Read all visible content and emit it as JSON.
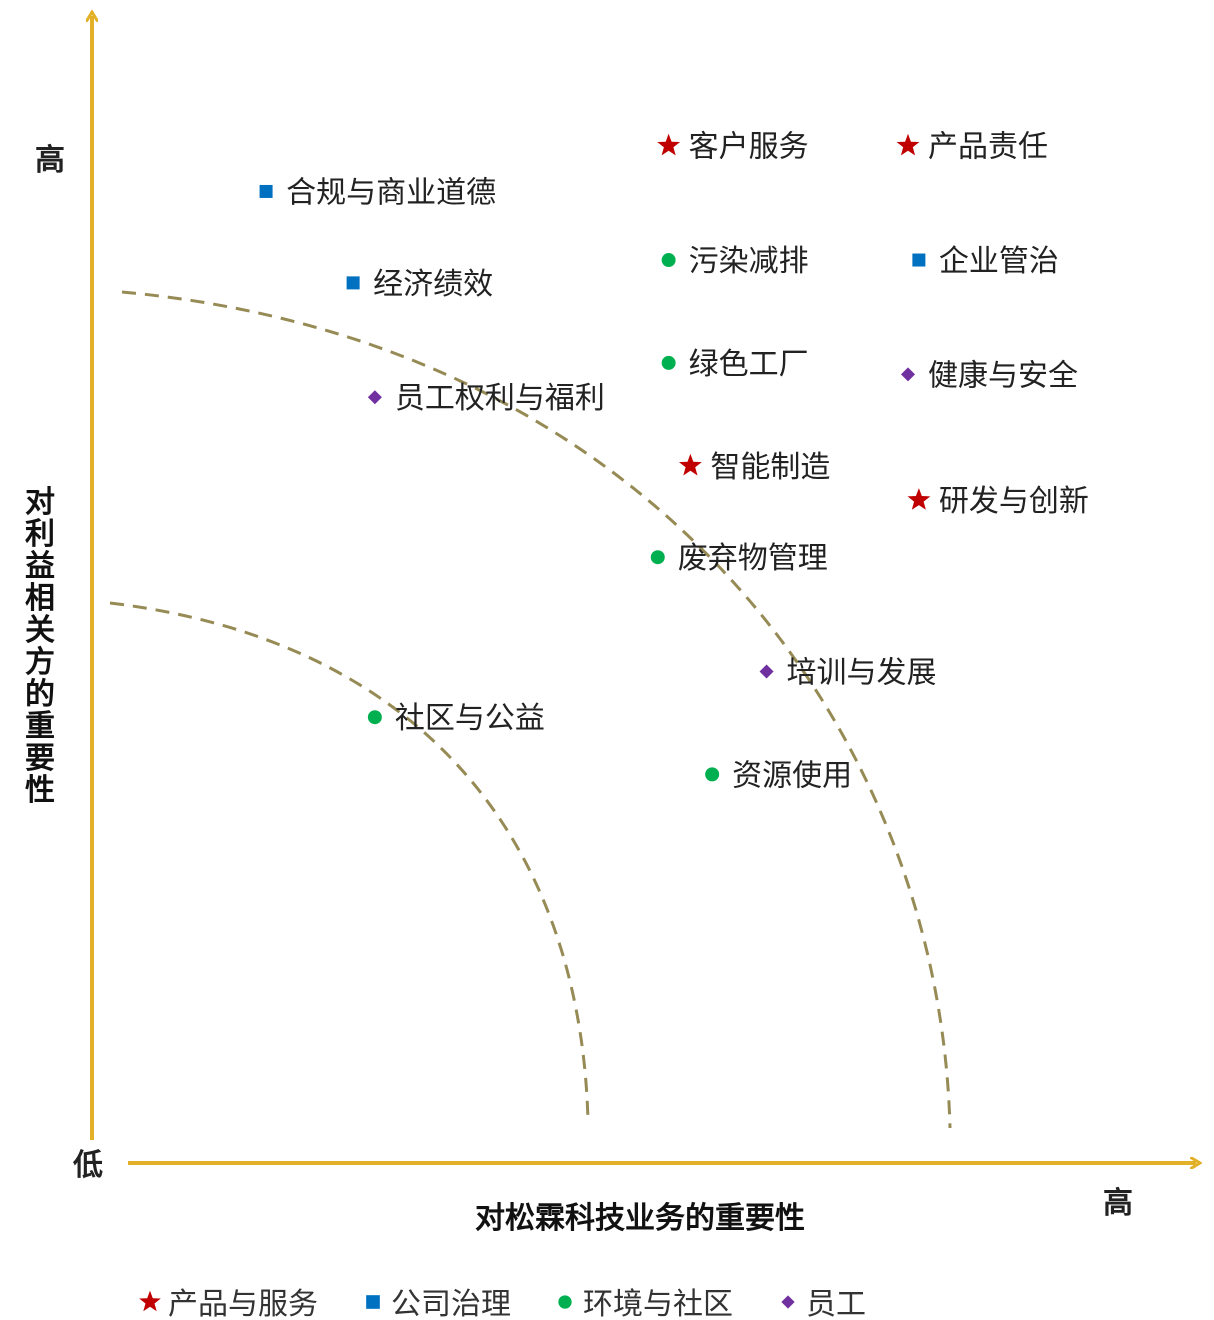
{
  "chart_data": {
    "type": "scatter",
    "title": "",
    "xlabel": "对松霖科技业务的重要性",
    "ylabel": "对利益相关方的重要性",
    "x_high_label": "高",
    "y_high_label": "高",
    "origin_low_label": "低",
    "xlim": [
      0,
      10
    ],
    "ylim": [
      0,
      10
    ],
    "grid": false,
    "legend_position": "bottom",
    "categories": [
      {
        "name": "产品与服务",
        "marker": "star",
        "color": "#C00000"
      },
      {
        "name": "公司治理",
        "marker": "square",
        "color": "#0070C0"
      },
      {
        "name": "环境与社区",
        "marker": "circle",
        "color": "#00B050"
      },
      {
        "name": "员工",
        "marker": "diamond",
        "color": "#7030A0"
      }
    ],
    "points": [
      {
        "label": "客户服务",
        "category": "产品与服务",
        "x": 5.3,
        "y": 8.9
      },
      {
        "label": "产品责任",
        "category": "产品与服务",
        "x": 7.5,
        "y": 8.9
      },
      {
        "label": "合规与商业道德",
        "category": "公司治理",
        "x": 1.6,
        "y": 8.5
      },
      {
        "label": "污染减排",
        "category": "环境与社区",
        "x": 5.3,
        "y": 7.9
      },
      {
        "label": "企业管治",
        "category": "公司治理",
        "x": 7.6,
        "y": 7.9
      },
      {
        "label": "经济绩效",
        "category": "公司治理",
        "x": 2.4,
        "y": 7.7
      },
      {
        "label": "绿色工厂",
        "category": "环境与社区",
        "x": 5.3,
        "y": 7.0
      },
      {
        "label": "健康与安全",
        "category": "员工",
        "x": 7.5,
        "y": 6.9
      },
      {
        "label": "员工权利与福利",
        "category": "员工",
        "x": 2.6,
        "y": 6.7
      },
      {
        "label": "智能制造",
        "category": "产品与服务",
        "x": 5.5,
        "y": 6.1
      },
      {
        "label": "研发与创新",
        "category": "产品与服务",
        "x": 7.6,
        "y": 5.8
      },
      {
        "label": "废弃物管理",
        "category": "环境与社区",
        "x": 5.2,
        "y": 5.3
      },
      {
        "label": "培训与发展",
        "category": "员工",
        "x": 6.2,
        "y": 4.3
      },
      {
        "label": "社区与公益",
        "category": "环境与社区",
        "x": 2.6,
        "y": 3.9
      },
      {
        "label": "资源使用",
        "category": "环境与社区",
        "x": 5.7,
        "y": 3.4
      }
    ]
  }
}
